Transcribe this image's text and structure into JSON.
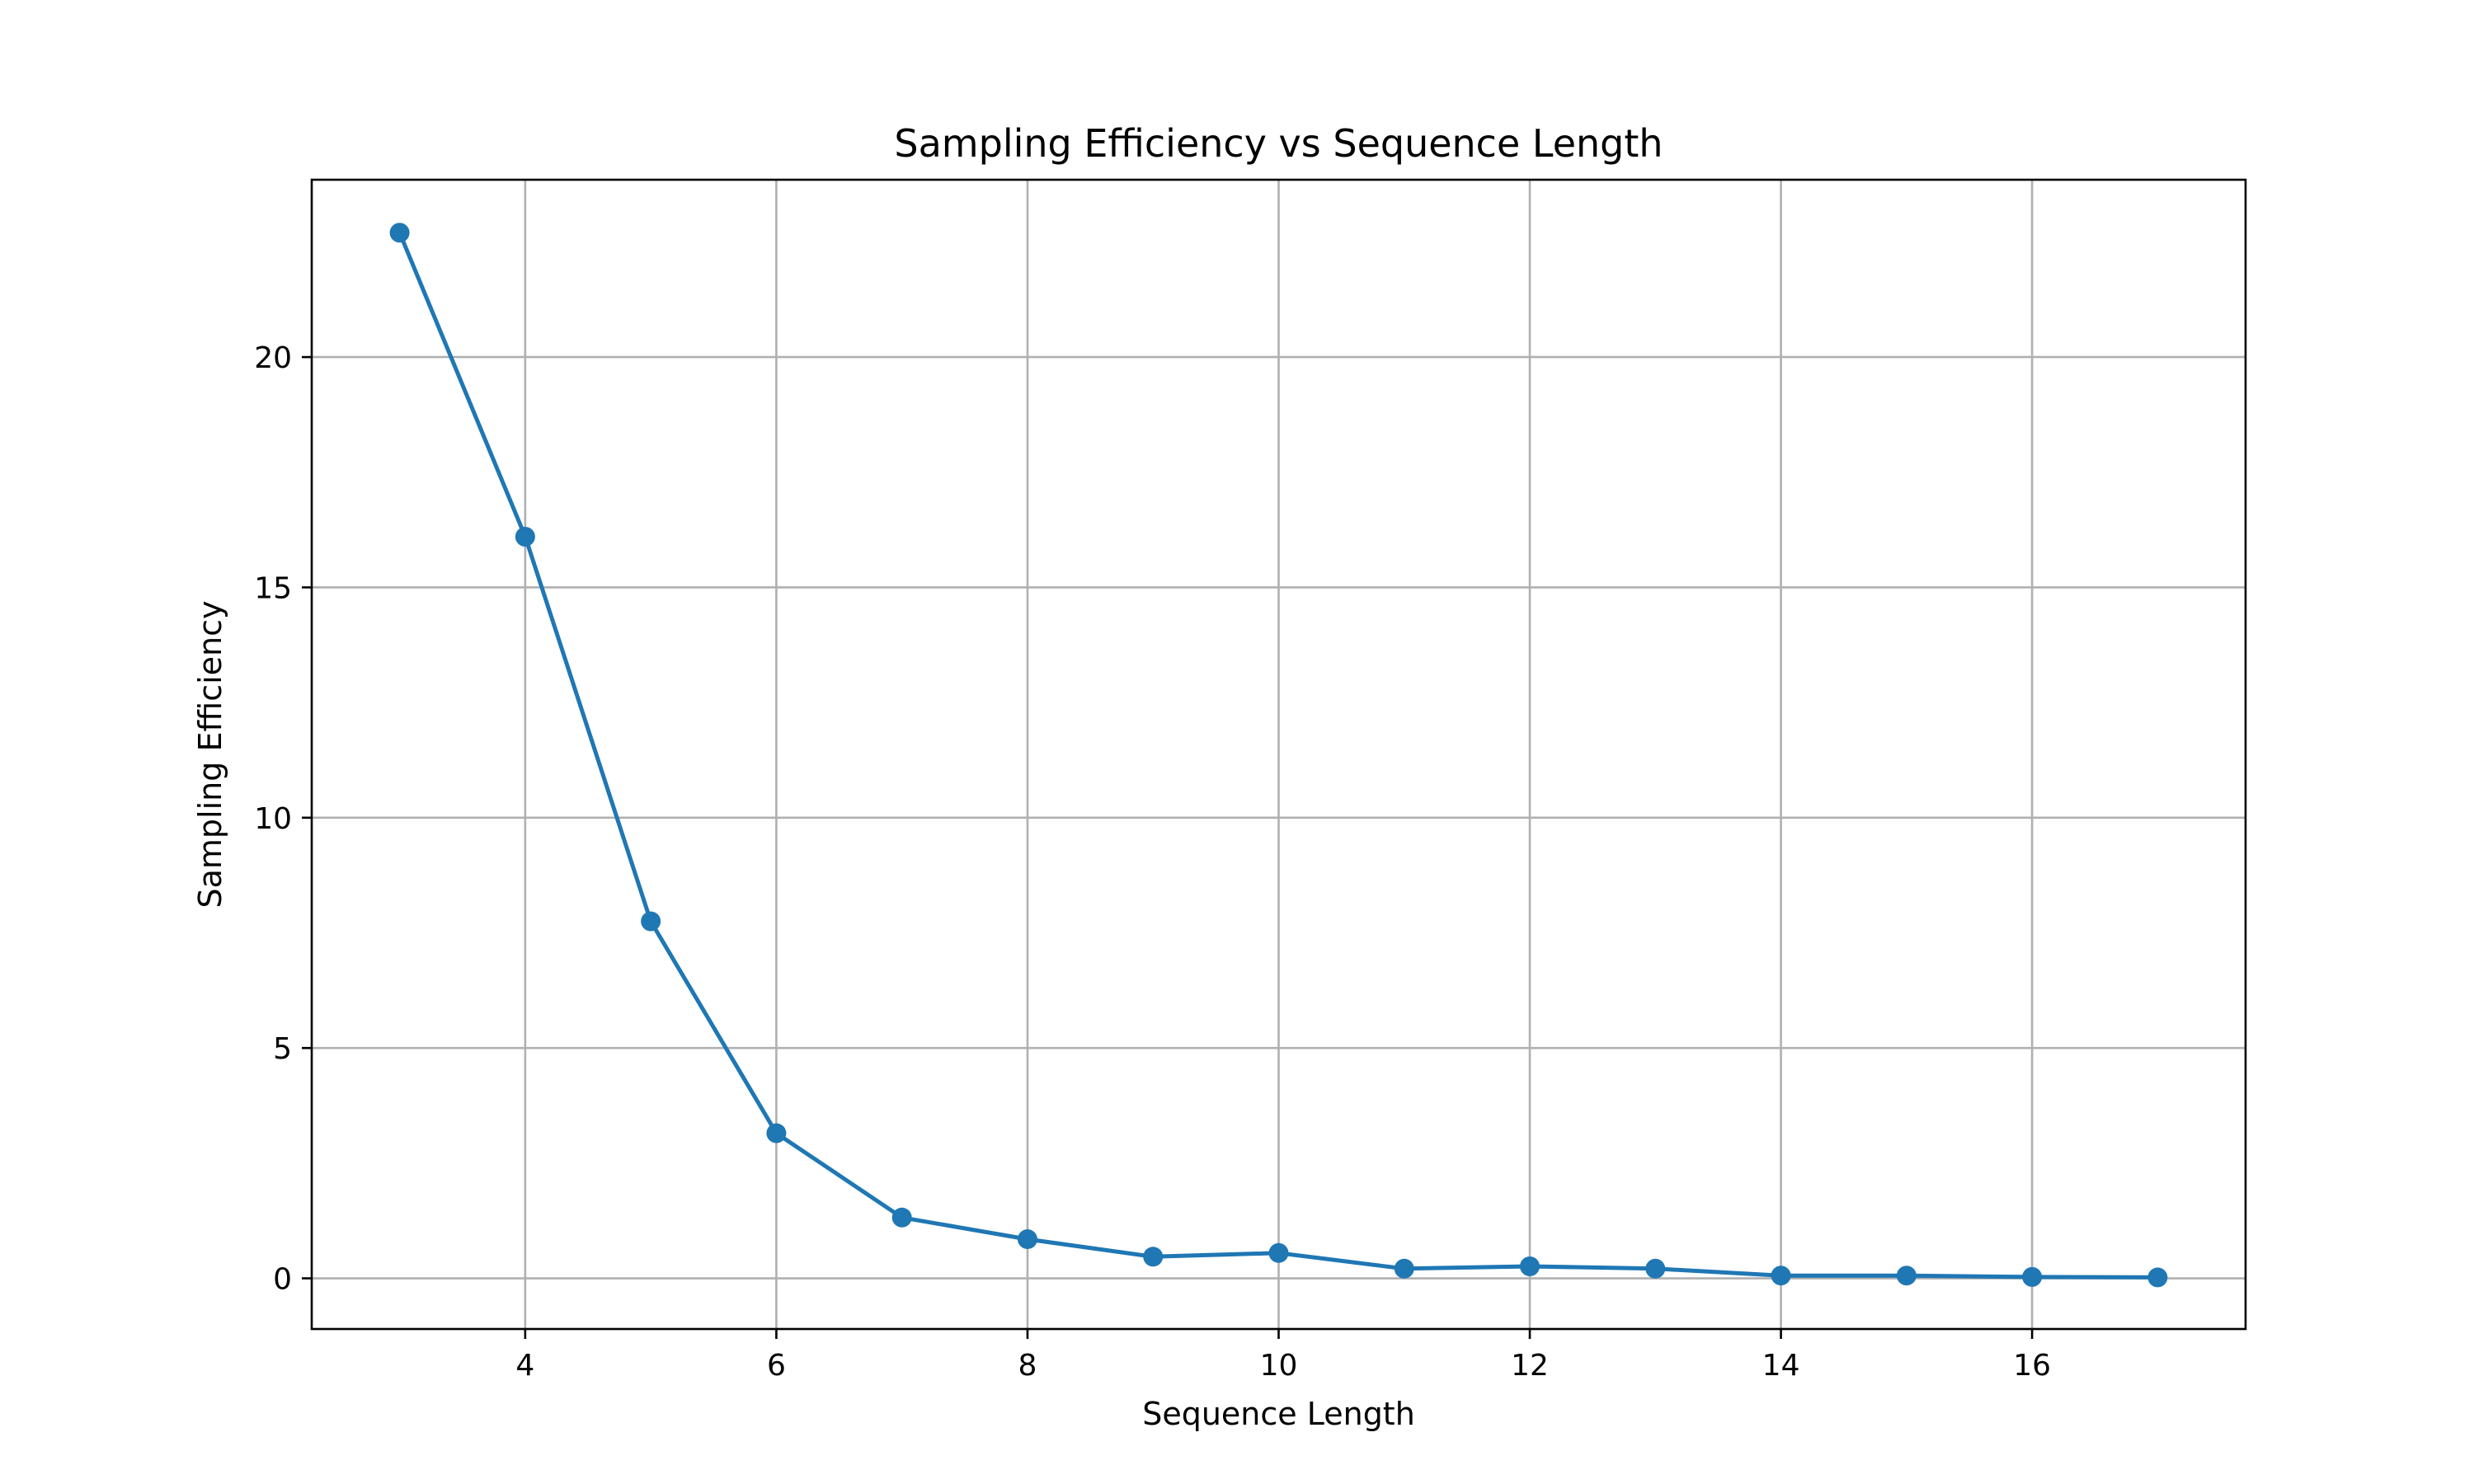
{
  "chart_data": {
    "type": "line",
    "title": "Sampling Efficiency vs Sequence Length",
    "xlabel": "Sequence Length",
    "ylabel": "Sampling Efficiency",
    "xlim": [
      2.3,
      17.7
    ],
    "ylim": [
      -1.1,
      23.85
    ],
    "xticks": [
      4,
      6,
      8,
      10,
      12,
      14,
      16
    ],
    "yticks": [
      0,
      5,
      10,
      15,
      20
    ],
    "grid": true,
    "legend": "none",
    "series": [
      {
        "color": "#1f77b4",
        "marker": "circle",
        "x": [
          3,
          4,
          5,
          6,
          7,
          8,
          9,
          10,
          11,
          12,
          13,
          14,
          15,
          16,
          17
        ],
        "y": [
          22.7,
          16.1,
          7.75,
          3.15,
          1.32,
          0.85,
          0.47,
          0.55,
          0.21,
          0.26,
          0.21,
          0.06,
          0.06,
          0.03,
          0.02
        ]
      }
    ]
  }
}
